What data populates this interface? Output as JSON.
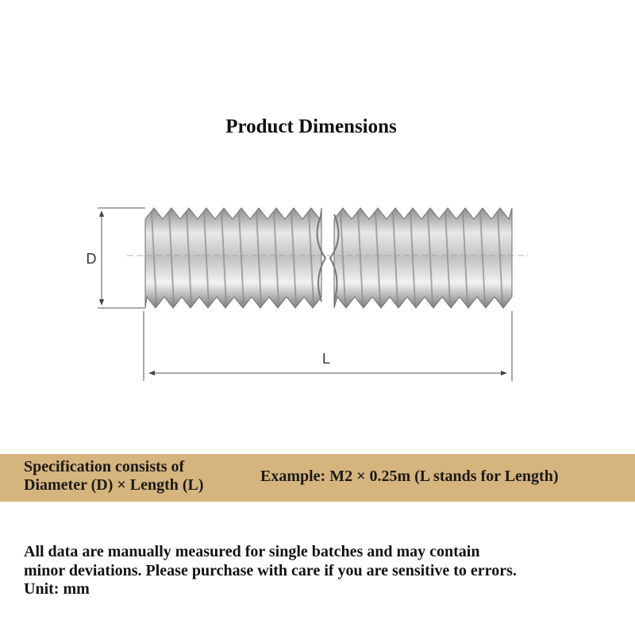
{
  "header": {
    "title": "Product Dimensions"
  },
  "diagram": {
    "diameter_label": "D",
    "length_label": "L"
  },
  "banner": {
    "spec": [
      "Specification consists of",
      "Diameter (D) × Length (L)"
    ],
    "example": "Example: M2 × 0.25m (L stands for Length)"
  },
  "notice": [
    "All data are manually measured for single batches and may contain",
    "minor deviations. Please purchase with care if you are sensitive to errors.",
    "Unit: mm"
  ]
}
